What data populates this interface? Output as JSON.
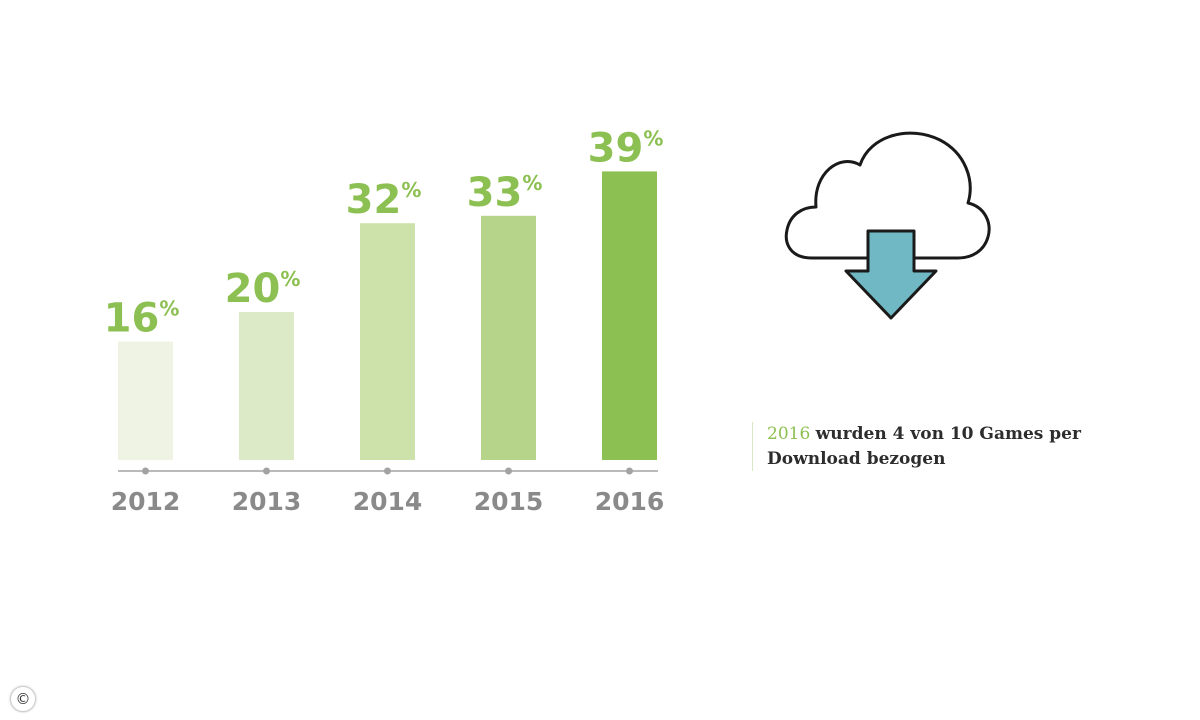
{
  "chart_data": {
    "type": "bar",
    "categories": [
      "2012",
      "2013",
      "2014",
      "2015",
      "2016"
    ],
    "values": [
      16,
      20,
      32,
      33,
      39
    ],
    "value_suffix": "%",
    "colors": [
      "#eef3e4",
      "#ddeac8",
      "#cde2aa",
      "#b6d58a",
      "#8dc052"
    ],
    "value_label_color": "#8dc052",
    "axis_color": "#a3a3a3",
    "category_label_color": "#8a8a8a",
    "grid": false
  },
  "caption": {
    "highlight": "2016",
    "text": "wurden 4 von 10 Games per Download bezogen",
    "highlight_color": "#8dc052"
  },
  "icons": {
    "cloud": "cloud-download-icon",
    "arrow_color": "#6fb8c4",
    "copyright": "copyright-icon"
  },
  "copyright_symbol": "©"
}
